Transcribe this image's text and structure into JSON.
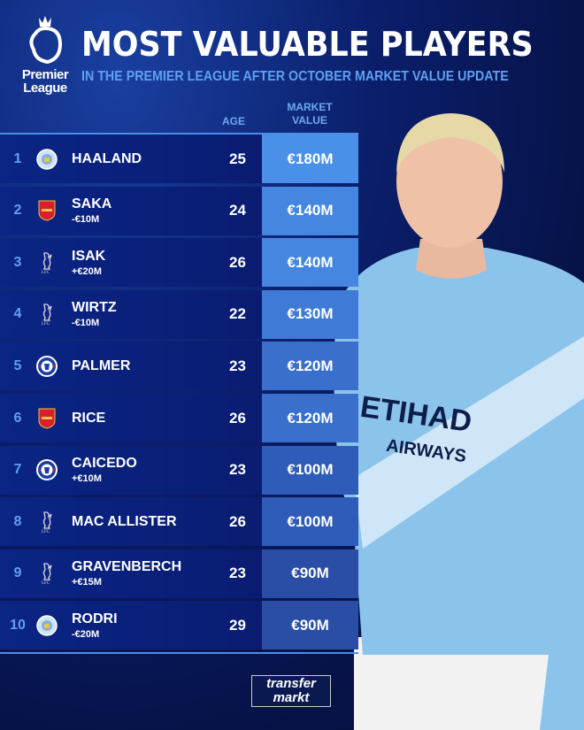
{
  "logo": {
    "line1": "Premier",
    "line2": "League"
  },
  "title": "MOST VALUABLE PLAYERS",
  "subtitle": "IN THE PREMIER LEAGUE AFTER OCTOBER MARKET VALUE UPDATE",
  "headers": {
    "age": "AGE",
    "value_line1": "MARKET",
    "value_line2": "VALUE"
  },
  "players": [
    {
      "rank": "1",
      "club_icon": "man-city-crest",
      "name": "HAALAND",
      "change": "",
      "age": "25",
      "value": "€180M",
      "color": "#4a90e8"
    },
    {
      "rank": "2",
      "club_icon": "arsenal-crest",
      "name": "SAKA",
      "change": "-€10M",
      "age": "24",
      "value": "€140M",
      "color": "#4587e0"
    },
    {
      "rank": "3",
      "club_icon": "liverpool-crest",
      "name": "ISAK",
      "change": "+€20M",
      "age": "26",
      "value": "€140M",
      "color": "#4587e0"
    },
    {
      "rank": "4",
      "club_icon": "liverpool-crest",
      "name": "WIRTZ",
      "change": "-€10M",
      "age": "22",
      "value": "€130M",
      "color": "#3f7bd6"
    },
    {
      "rank": "5",
      "club_icon": "chelsea-crest",
      "name": "PALMER",
      "change": "",
      "age": "23",
      "value": "€120M",
      "color": "#3a70cc"
    },
    {
      "rank": "6",
      "club_icon": "arsenal-crest",
      "name": "RICE",
      "change": "",
      "age": "26",
      "value": "€120M",
      "color": "#3a70cc"
    },
    {
      "rank": "7",
      "club_icon": "chelsea-crest",
      "name": "CAICEDO",
      "change": "+€10M",
      "age": "23",
      "value": "€100M",
      "color": "#2f5cb8"
    },
    {
      "rank": "8",
      "club_icon": "liverpool-crest",
      "name": "MAC ALLISTER",
      "change": "",
      "age": "26",
      "value": "€100M",
      "color": "#2f5cb8"
    },
    {
      "rank": "9",
      "club_icon": "liverpool-crest",
      "name": "GRAVENBERCH",
      "change": "+€15M",
      "age": "23",
      "value": "€90M",
      "color": "#2a4ea6"
    },
    {
      "rank": "10",
      "club_icon": "man-city-crest",
      "name": "RODRI",
      "change": "-€20M",
      "age": "29",
      "value": "€90M",
      "color": "#2a4ea6"
    }
  ],
  "shirt": {
    "sponsor": "ETIHAD",
    "sponsor2": "AIRWAYS"
  },
  "brand": {
    "line1": "transfer",
    "line2": "markt"
  }
}
